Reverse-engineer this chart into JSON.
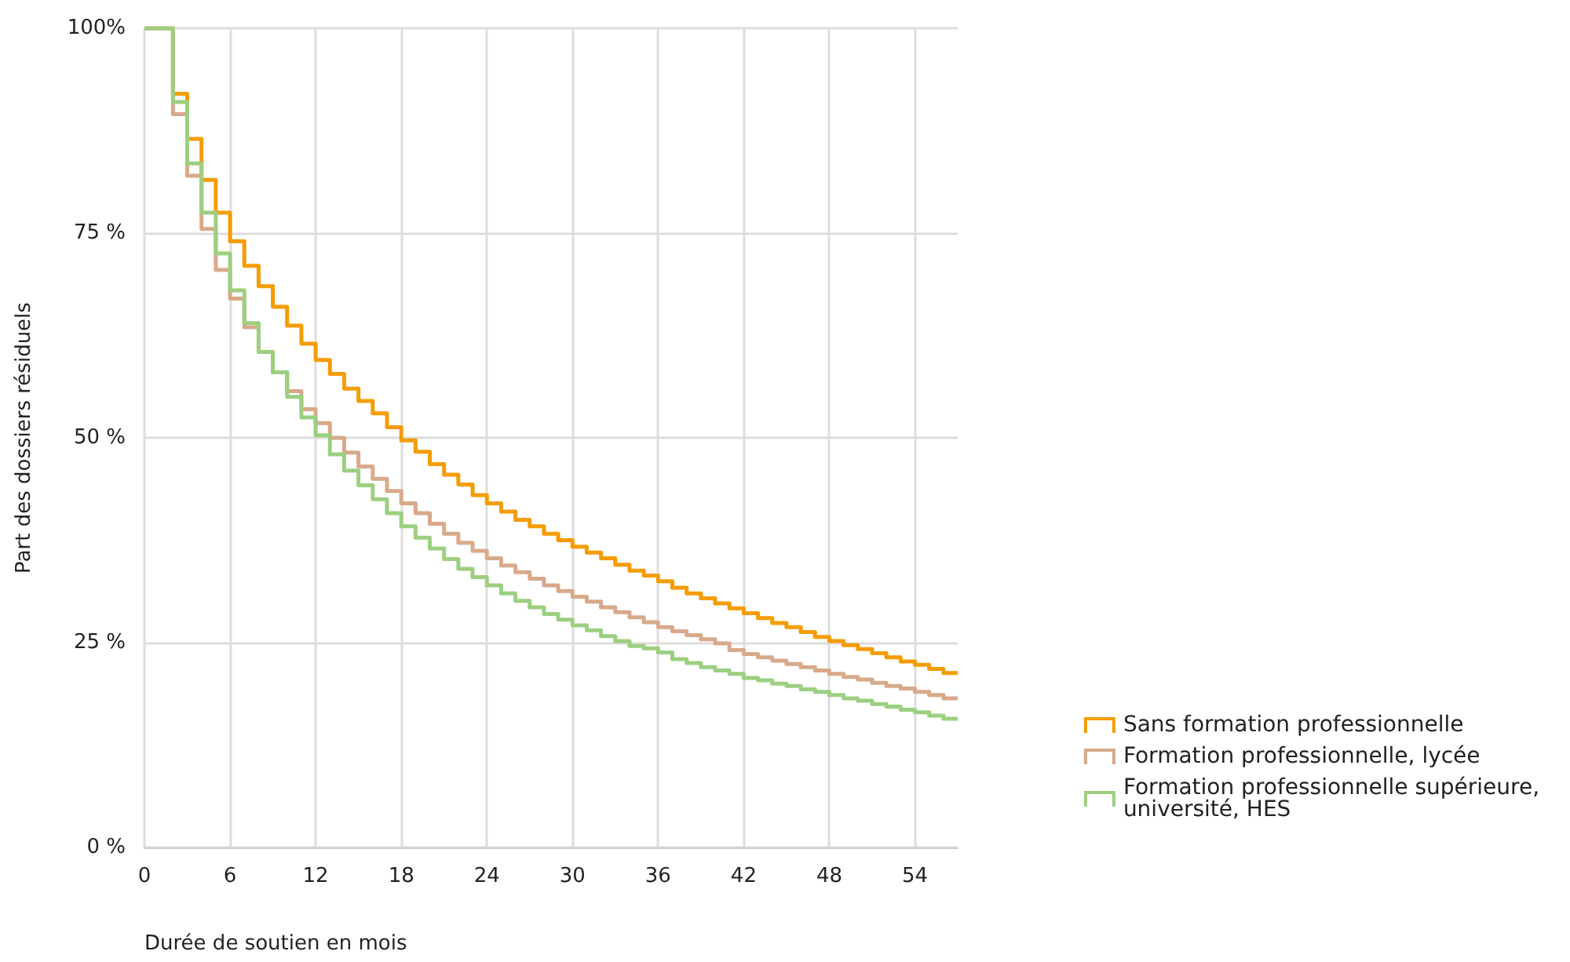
{
  "chart_data": {
    "type": "step",
    "xlabel": "Durée de soutien en mois",
    "ylabel": "Part des dossiers résiduels",
    "x": [
      0,
      1,
      2,
      3,
      4,
      5,
      6,
      7,
      8,
      9,
      10,
      11,
      12,
      13,
      14,
      15,
      16,
      17,
      18,
      19,
      20,
      21,
      22,
      23,
      24,
      25,
      26,
      27,
      28,
      29,
      30,
      31,
      32,
      33,
      34,
      35,
      36,
      37,
      38,
      39,
      40,
      41,
      42,
      43,
      44,
      45,
      46,
      47,
      48,
      49,
      50,
      51,
      52,
      53,
      54,
      55,
      56,
      57
    ],
    "xlim": [
      0,
      57
    ],
    "xticks": [
      0,
      6,
      12,
      18,
      24,
      30,
      36,
      42,
      48,
      54
    ],
    "ylim": [
      0,
      100
    ],
    "yticks": [
      {
        "value": 0,
        "label": "0 %"
      },
      {
        "value": 25,
        "label": "25 %"
      },
      {
        "value": 50,
        "label": "50 %"
      },
      {
        "value": 75,
        "label": "75 %"
      },
      {
        "value": 100,
        "label": "100%"
      }
    ],
    "grid": true,
    "legend": "right",
    "marker": "none",
    "line_style": "solid",
    "series": [
      {
        "name": "Sans formation professionnelle",
        "color": "#f59c00",
        "values": [
          100,
          100,
          92,
          86.5,
          81.5,
          77.5,
          74,
          71,
          68.5,
          66,
          63.7,
          61.5,
          59.5,
          57.8,
          56,
          54.5,
          53,
          51.3,
          49.7,
          48.3,
          46.8,
          45.5,
          44.3,
          43,
          42,
          41,
          40,
          39.2,
          38.3,
          37.5,
          36.7,
          36,
          35.3,
          34.5,
          33.8,
          33.2,
          32.5,
          31.7,
          31,
          30.4,
          29.8,
          29.2,
          28.6,
          28,
          27.4,
          26.9,
          26.3,
          25.7,
          25.2,
          24.7,
          24.2,
          23.7,
          23.2,
          22.7,
          22.3,
          21.8,
          21.3,
          21.3
        ]
      },
      {
        "name": "Formation professionnelle, lycée",
        "color": "#d8a98a",
        "values": [
          100,
          100,
          89.5,
          82,
          75.5,
          70.5,
          67,
          63.5,
          60.5,
          58,
          55.7,
          53.5,
          51.8,
          50,
          48.2,
          46.5,
          45,
          43.5,
          42,
          40.8,
          39.5,
          38.3,
          37.2,
          36.2,
          35.3,
          34.4,
          33.6,
          32.8,
          32,
          31.3,
          30.6,
          30,
          29.3,
          28.7,
          28.1,
          27.5,
          26.9,
          26.4,
          25.9,
          25.4,
          24.9,
          24.1,
          23.6,
          23.2,
          22.8,
          22.4,
          22,
          21.6,
          21.2,
          20.8,
          20.5,
          20.1,
          19.7,
          19.4,
          19,
          18.6,
          18.2,
          18.2
        ]
      },
      {
        "name": "Formation professionnelle supérieure, université, HES",
        "color": "#9ccf80",
        "values": [
          100,
          100,
          91,
          83.5,
          77.5,
          72.5,
          68,
          64,
          60.5,
          58,
          55,
          52.5,
          50.3,
          48,
          46,
          44.2,
          42.5,
          40.8,
          39.2,
          37.8,
          36.5,
          35.2,
          34,
          33,
          32,
          31,
          30.1,
          29.3,
          28.5,
          27.8,
          27.1,
          26.5,
          25.8,
          25.2,
          24.6,
          24.3,
          23.8,
          23,
          22.5,
          22,
          21.6,
          21.2,
          20.7,
          20.4,
          20,
          19.7,
          19.3,
          19,
          18.6,
          18.2,
          17.9,
          17.5,
          17.2,
          16.8,
          16.5,
          16.1,
          15.7,
          15.7
        ]
      }
    ]
  }
}
